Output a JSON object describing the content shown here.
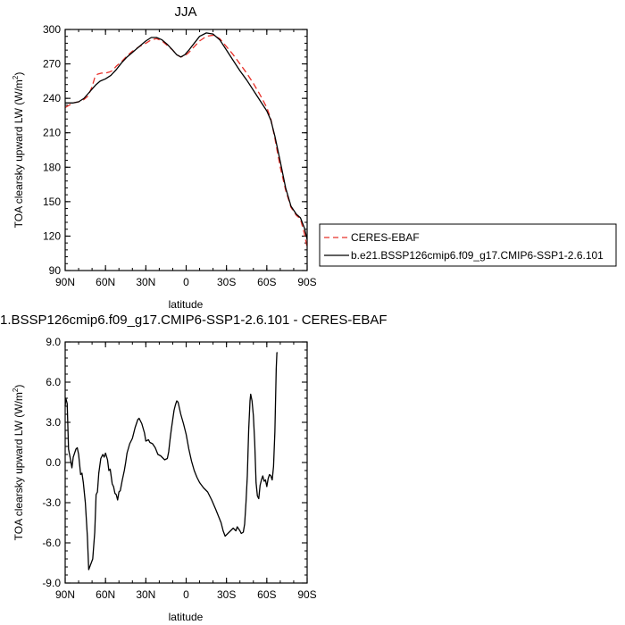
{
  "chart_data": [
    {
      "type": "line",
      "title": "JJA",
      "xlabel": "latitude",
      "ylabel": "TOA clearsky upward LW (W/m²)",
      "ylabel_main": "TOA clearsky upward LW (W/m",
      "ylabel_sup": "2",
      "ylabel_tail": ")",
      "x_ticks": [
        90,
        60,
        30,
        0,
        -30,
        -60,
        -90
      ],
      "x_tick_labels": [
        "90N",
        "60N",
        "30N",
        "0",
        "30S",
        "60S",
        "90S"
      ],
      "xlim": [
        90,
        -90
      ],
      "y_ticks": [
        90,
        120,
        150,
        180,
        210,
        240,
        270,
        300
      ],
      "y_tick_labels": [
        "90",
        "120",
        "150",
        "180",
        "210",
        "240",
        "270",
        "300"
      ],
      "ylim": [
        90,
        300
      ],
      "legend_position": "outside-right",
      "series": [
        {
          "name": "CERES-EBAF",
          "color": "#e8312a",
          "dash": "dashed",
          "points": [
            [
              90,
              232
            ],
            [
              87,
              234
            ],
            [
              84,
              236
            ],
            [
              80,
              237
            ],
            [
              76,
              239
            ],
            [
              73,
              242
            ],
            [
              70,
              250
            ],
            [
              68,
              258
            ],
            [
              66,
              261
            ],
            [
              63,
              262
            ],
            [
              60,
              262
            ],
            [
              57,
              263
            ],
            [
              55,
              264
            ],
            [
              52,
              268
            ],
            [
              48,
              272
            ],
            [
              44,
              277
            ],
            [
              40,
              281
            ],
            [
              35,
              285
            ],
            [
              30,
              288
            ],
            [
              26,
              291
            ],
            [
              22,
              292
            ],
            [
              18,
              290
            ],
            [
              14,
              286
            ],
            [
              10,
              282
            ],
            [
              7,
              278
            ],
            [
              4,
              276
            ],
            [
              1,
              277
            ],
            [
              -2,
              280
            ],
            [
              -6,
              285
            ],
            [
              -10,
              290
            ],
            [
              -15,
              294
            ],
            [
              -20,
              295
            ],
            [
              -25,
              292
            ],
            [
              -30,
              285
            ],
            [
              -35,
              278
            ],
            [
              -40,
              270
            ],
            [
              -45,
              262
            ],
            [
              -50,
              253
            ],
            [
              -55,
              243
            ],
            [
              -60,
              232
            ],
            [
              -63,
              222
            ],
            [
              -66,
              205
            ],
            [
              -70,
              180
            ],
            [
              -74,
              160
            ],
            [
              -78,
              145
            ],
            [
              -82,
              138
            ],
            [
              -85,
              135
            ],
            [
              -88,
              122
            ],
            [
              -90,
              110
            ]
          ]
        },
        {
          "name": "b.e21.BSSP126cmip6.f09_g17.CMIP6-SSP1-2.6.101",
          "color": "#000000",
          "dash": "solid",
          "points": [
            [
              90,
              236
            ],
            [
              87,
              236
            ],
            [
              84,
              236
            ],
            [
              80,
              237
            ],
            [
              76,
              240
            ],
            [
              73,
              244
            ],
            [
              70,
              248
            ],
            [
              67,
              252
            ],
            [
              64,
              255
            ],
            [
              60,
              257
            ],
            [
              56,
              260
            ],
            [
              52,
              265
            ],
            [
              48,
              271
            ],
            [
              44,
              276
            ],
            [
              40,
              280
            ],
            [
              35,
              285
            ],
            [
              30,
              290
            ],
            [
              26,
              293
            ],
            [
              22,
              293
            ],
            [
              18,
              291
            ],
            [
              14,
              287
            ],
            [
              10,
              282
            ],
            [
              7,
              278
            ],
            [
              4,
              276
            ],
            [
              1,
              278
            ],
            [
              -2,
              282
            ],
            [
              -6,
              288
            ],
            [
              -10,
              294
            ],
            [
              -15,
              297
            ],
            [
              -20,
              296
            ],
            [
              -25,
              291
            ],
            [
              -30,
              282
            ],
            [
              -35,
              273
            ],
            [
              -40,
              264
            ],
            [
              -45,
              256
            ],
            [
              -50,
              247
            ],
            [
              -55,
              238
            ],
            [
              -60,
              229
            ],
            [
              -63,
              221
            ],
            [
              -66,
              207
            ],
            [
              -70,
              185
            ],
            [
              -74,
              162
            ],
            [
              -78,
              146
            ],
            [
              -82,
              139
            ],
            [
              -85,
              136
            ],
            [
              -88,
              127
            ],
            [
              -90,
              117
            ]
          ]
        }
      ]
    },
    {
      "type": "line",
      "title": "1.BSSP126cmip6.f09_g17.CMIP6-SSP1-2.6.101 - CERES-EBAF",
      "xlabel": "latitude",
      "ylabel": "TOA clearsky upward LW (W/m²)",
      "ylabel_main": "TOA clearsky upward LW (W/m",
      "ylabel_sup": "2",
      "ylabel_tail": ")",
      "x_ticks": [
        90,
        60,
        30,
        0,
        -30,
        -60,
        -90
      ],
      "x_tick_labels": [
        "90N",
        "60N",
        "30N",
        "0",
        "30S",
        "60S",
        "90S"
      ],
      "xlim": [
        90,
        -90
      ],
      "y_ticks": [
        -9,
        -6,
        -3,
        0,
        3,
        6,
        9
      ],
      "y_tick_labels": [
        "-9.0",
        "-6.0",
        "-3.0",
        "0.0",
        "3.0",
        "6.0",
        "9.0"
      ],
      "ylim": [
        -9,
        9
      ],
      "series": [
        {
          "color": "#000000",
          "dash": "solid",
          "points": [
            [
              90,
              4.2
            ],
            [
              89.5,
              4.8
            ],
            [
              88.5,
              4.4
            ],
            [
              87.5,
              1.0
            ],
            [
              86,
              0.2
            ],
            [
              85,
              -0.4
            ],
            [
              84,
              0.4
            ],
            [
              82,
              1.0
            ],
            [
              81,
              1.1
            ],
            [
              80,
              0.6
            ],
            [
              78.5,
              -0.9
            ],
            [
              77.5,
              -0.8
            ],
            [
              76.5,
              -1.5
            ],
            [
              75,
              -3.0
            ],
            [
              73.5,
              -5.5
            ],
            [
              72.5,
              -8.0
            ],
            [
              71,
              -7.6
            ],
            [
              69.5,
              -7.2
            ],
            [
              68,
              -5.2
            ],
            [
              67,
              -2.4
            ],
            [
              66,
              -2.2
            ],
            [
              65,
              -0.8
            ],
            [
              63.5,
              0.3
            ],
            [
              62,
              0.6
            ],
            [
              61,
              0.4
            ],
            [
              60,
              0.7
            ],
            [
              58.5,
              0.2
            ],
            [
              57.5,
              -0.6
            ],
            [
              56.5,
              -0.5
            ],
            [
              55,
              -1.6
            ],
            [
              54,
              -1.8
            ],
            [
              53,
              -2.3
            ],
            [
              52,
              -2.4
            ],
            [
              51,
              -2.8
            ],
            [
              50,
              -2.2
            ],
            [
              49,
              -2.1
            ],
            [
              47.5,
              -1.3
            ],
            [
              46,
              -0.6
            ],
            [
              45,
              0.0
            ],
            [
              44,
              0.7
            ],
            [
              42,
              1.4
            ],
            [
              40,
              1.8
            ],
            [
              38,
              2.6
            ],
            [
              36,
              3.2
            ],
            [
              35,
              3.3
            ],
            [
              33,
              2.9
            ],
            [
              31,
              2.2
            ],
            [
              30,
              1.6
            ],
            [
              28,
              1.7
            ],
            [
              27,
              1.5
            ],
            [
              25,
              1.4
            ],
            [
              23,
              1.1
            ],
            [
              21,
              0.6
            ],
            [
              19,
              0.5
            ],
            [
              17,
              0.3
            ],
            [
              16,
              0.2
            ],
            [
              14,
              0.3
            ],
            [
              13,
              0.8
            ],
            [
              12,
              1.7
            ],
            [
              11,
              2.5
            ],
            [
              10,
              3.2
            ],
            [
              9,
              3.9
            ],
            [
              8,
              4.3
            ],
            [
              7,
              4.6
            ],
            [
              6,
              4.5
            ],
            [
              4,
              3.6
            ],
            [
              2,
              2.9
            ],
            [
              0,
              2.1
            ],
            [
              -2,
              1.0
            ],
            [
              -4,
              0.1
            ],
            [
              -6,
              -0.6
            ],
            [
              -8,
              -1.1
            ],
            [
              -10,
              -1.5
            ],
            [
              -13,
              -1.9
            ],
            [
              -16,
              -2.2
            ],
            [
              -19,
              -2.8
            ],
            [
              -22,
              -3.5
            ],
            [
              -24,
              -4.0
            ],
            [
              -26,
              -4.5
            ],
            [
              -27.5,
              -5.1
            ],
            [
              -29,
              -5.5
            ],
            [
              -30,
              -5.4
            ],
            [
              -32,
              -5.2
            ],
            [
              -34,
              -5.0
            ],
            [
              -35,
              -4.9
            ],
            [
              -37,
              -5.1
            ],
            [
              -38,
              -4.8
            ],
            [
              -40,
              -5.1
            ],
            [
              -41,
              -5.3
            ],
            [
              -42.5,
              -5.2
            ],
            [
              -43.5,
              -4.6
            ],
            [
              -44.5,
              -3.0
            ],
            [
              -45.5,
              -1.0
            ],
            [
              -46.5,
              2.4
            ],
            [
              -47.5,
              4.6
            ],
            [
              -48,
              5.1
            ],
            [
              -49,
              4.6
            ],
            [
              -50,
              3.5
            ],
            [
              -51,
              1.5
            ],
            [
              -52,
              -1.5
            ],
            [
              -53,
              -2.5
            ],
            [
              -54,
              -2.7
            ],
            [
              -55,
              -1.7
            ],
            [
              -56,
              -1.3
            ],
            [
              -57,
              -1.0
            ],
            [
              -58,
              -1.4
            ],
            [
              -59,
              -1.3
            ],
            [
              -60,
              -1.8
            ],
            [
              -61,
              -1.2
            ],
            [
              -62,
              -0.9
            ],
            [
              -63,
              -1.0
            ],
            [
              -64,
              -1.3
            ],
            [
              -65,
              -0.3
            ],
            [
              -66,
              2.3
            ],
            [
              -67,
              7.0
            ],
            [
              -67.5,
              8.2
            ],
            [
              -68,
              8.2
            ]
          ]
        }
      ]
    }
  ]
}
